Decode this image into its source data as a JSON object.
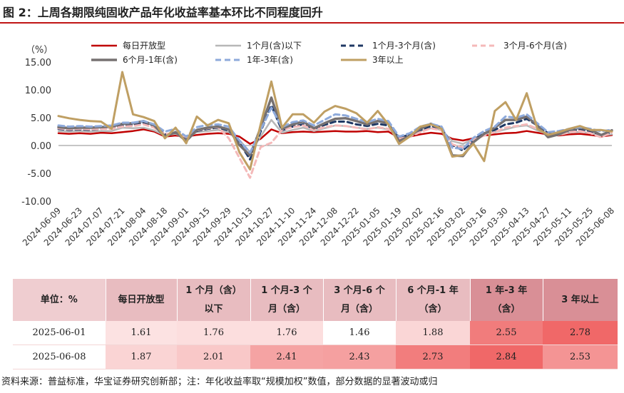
{
  "figure": {
    "title": "图 2：上周各期限纯固收产品年化收益率基本环比不同程度回升"
  },
  "chart_data": {
    "type": "line",
    "ylabel": "（%）",
    "ylim": [
      -10,
      15
    ],
    "yticks": [
      "15.00",
      "10.00",
      "5.00",
      "0.00",
      "-5.00",
      "-10.00"
    ],
    "grid": false,
    "legend_position": "top",
    "x_ticks": [
      "2024-06-09",
      "2024-06-23",
      "2024-07-07",
      "2024-07-21",
      "2024-08-04",
      "2024-08-18",
      "2024-09-01",
      "2024-09-15",
      "2024-09-29",
      "2024-10-13",
      "2024-10-27",
      "2024-11-10",
      "2024-11-24",
      "2024-12-08",
      "2024-12-22",
      "2025-01-05",
      "2025-01-19",
      "2025-02-02",
      "2025-02-16",
      "2025-03-02",
      "2025-03-16",
      "2025-03-30",
      "2025-04-13",
      "2025-04-27",
      "2025-05-11",
      "2025-05-25",
      "2025-06-08"
    ],
    "x": [
      "2024-06-09",
      "2024-06-16",
      "2024-06-23",
      "2024-06-30",
      "2024-07-07",
      "2024-07-14",
      "2024-07-21",
      "2024-07-28",
      "2024-08-04",
      "2024-08-11",
      "2024-08-18",
      "2024-08-25",
      "2024-09-01",
      "2024-09-08",
      "2024-09-15",
      "2024-09-22",
      "2024-09-29",
      "2024-10-06",
      "2024-10-13",
      "2024-10-20",
      "2024-10-27",
      "2024-11-03",
      "2024-11-10",
      "2024-11-17",
      "2024-11-24",
      "2024-12-01",
      "2024-12-08",
      "2024-12-15",
      "2024-12-22",
      "2024-12-29",
      "2025-01-05",
      "2025-01-12",
      "2025-01-19",
      "2025-01-26",
      "2025-02-02",
      "2025-02-09",
      "2025-02-16",
      "2025-02-23",
      "2025-03-02",
      "2025-03-09",
      "2025-03-16",
      "2025-03-23",
      "2025-03-30",
      "2025-04-06",
      "2025-04-13",
      "2025-04-20",
      "2025-04-27",
      "2025-05-04",
      "2025-05-11",
      "2025-05-18",
      "2025-05-25",
      "2025-06-01",
      "2025-06-08"
    ],
    "series": [
      {
        "name": "每日开放型",
        "color": "#c00000",
        "dash": "",
        "width": 2.5,
        "values": [
          2.2,
          2.1,
          2.2,
          2.1,
          2.3,
          2.2,
          2.4,
          2.6,
          2.9,
          2.5,
          1.6,
          1.8,
          1.6,
          1.9,
          2.1,
          2.2,
          2.1,
          1.6,
          0.3,
          1.2,
          2.9,
          2.2,
          2.4,
          2.5,
          2.4,
          2.5,
          2.6,
          2.5,
          2.5,
          2.6,
          2.4,
          2.5,
          1.4,
          1.6,
          2.0,
          2.3,
          2.1,
          1.2,
          0.9,
          1.3,
          1.8,
          2.0,
          2.2,
          2.3,
          2.6,
          2.3,
          2.0,
          1.8,
          2.0,
          2.1,
          1.9,
          1.61,
          1.87
        ]
      },
      {
        "name": "1个月(含)以下",
        "color": "#b7b7b7",
        "dash": "",
        "width": 2.5,
        "values": [
          2.6,
          2.5,
          2.6,
          2.5,
          2.6,
          2.6,
          3.2,
          3.1,
          3.2,
          2.7,
          1.8,
          2.1,
          1.2,
          2.4,
          2.6,
          2.8,
          2.4,
          1.0,
          -1.2,
          1.6,
          4.6,
          2.3,
          2.8,
          3.2,
          2.6,
          3.1,
          3.6,
          3.5,
          3.2,
          3.0,
          3.2,
          2.9,
          1.6,
          1.9,
          2.6,
          3.1,
          2.8,
          0.8,
          0.3,
          1.2,
          2.1,
          2.4,
          2.9,
          3.4,
          3.6,
          2.7,
          2.0,
          1.9,
          2.3,
          2.5,
          2.2,
          1.76,
          2.01
        ]
      },
      {
        "name": "1个月-3个月(含)",
        "color": "#1f3864",
        "dash": "7,5",
        "width": 3,
        "values": [
          3.0,
          2.8,
          2.9,
          2.8,
          3.0,
          3.1,
          3.5,
          3.7,
          4.1,
          3.5,
          2.0,
          2.3,
          1.4,
          2.6,
          3.0,
          3.2,
          2.7,
          0.5,
          -2.5,
          2.5,
          7.2,
          2.7,
          3.4,
          3.8,
          3.0,
          3.7,
          4.3,
          4.3,
          3.8,
          3.5,
          3.9,
          3.6,
          1.4,
          1.9,
          2.8,
          3.5,
          3.1,
          0.1,
          -0.9,
          1.0,
          2.2,
          2.8,
          3.8,
          4.1,
          4.8,
          3.6,
          2.2,
          2.0,
          2.6,
          2.9,
          2.6,
          1.76,
          2.41
        ]
      },
      {
        "name": "3个月-6个月(含)",
        "color": "#f4b9b9",
        "dash": "7,5",
        "width": 3,
        "values": [
          3.1,
          2.9,
          3.0,
          2.9,
          3.0,
          3.0,
          3.4,
          3.5,
          3.8,
          3.2,
          2.0,
          2.4,
          1.5,
          2.7,
          3.1,
          3.3,
          1.3,
          -2.2,
          -5.8,
          -0.3,
          0.5,
          2.8,
          3.3,
          3.6,
          2.8,
          3.3,
          3.6,
          3.5,
          3.2,
          2.9,
          3.3,
          3.0,
          1.2,
          1.6,
          2.4,
          3.1,
          2.7,
          0.2,
          -0.4,
          1.0,
          1.8,
          2.4,
          3.2,
          3.5,
          3.8,
          3.0,
          2.0,
          1.9,
          2.4,
          2.6,
          2.2,
          1.46,
          2.43
        ]
      },
      {
        "name": "6个月-1年(含)",
        "color": "#767171",
        "dash": "",
        "width": 3.5,
        "values": [
          3.3,
          3.1,
          3.2,
          3.2,
          3.3,
          3.4,
          3.9,
          4.0,
          4.4,
          3.6,
          1.6,
          2.4,
          0.8,
          2.8,
          3.2,
          3.4,
          2.9,
          0.1,
          -1.8,
          3.2,
          8.6,
          3.0,
          3.8,
          4.3,
          3.1,
          4.0,
          4.8,
          4.9,
          4.4,
          3.8,
          4.4,
          4.0,
          0.8,
          1.7,
          3.0,
          3.9,
          3.2,
          -1.8,
          -1.9,
          0.6,
          2.1,
          3.2,
          4.6,
          4.6,
          5.2,
          3.6,
          1.5,
          2.0,
          2.8,
          3.2,
          2.8,
          1.88,
          2.73
        ]
      },
      {
        "name": "1年-3年(含)",
        "color": "#8eaadb",
        "dash": "8,5",
        "width": 3,
        "values": [
          3.6,
          3.4,
          3.5,
          3.4,
          3.5,
          3.6,
          4.1,
          4.1,
          4.4,
          3.8,
          2.5,
          3.0,
          1.6,
          3.3,
          3.7,
          3.8,
          3.4,
          0.9,
          -1.3,
          2.8,
          6.8,
          3.3,
          4.2,
          4.5,
          3.6,
          4.6,
          5.6,
          5.4,
          4.8,
          4.2,
          4.8,
          4.4,
          1.6,
          2.2,
          3.4,
          3.9,
          3.4,
          -0.4,
          -0.6,
          1.4,
          2.6,
          3.4,
          5.2,
          5.0,
          5.6,
          4.0,
          2.4,
          2.6,
          3.0,
          3.3,
          3.0,
          2.55,
          2.84
        ]
      },
      {
        "name": "3年以上",
        "color": "#bf9f63",
        "dash": "",
        "width": 3,
        "values": [
          5.3,
          4.9,
          4.6,
          4.4,
          4.3,
          3.0,
          13.2,
          5.6,
          5.1,
          4.4,
          1.3,
          3.2,
          0.4,
          5.2,
          3.6,
          4.6,
          4.0,
          -1.2,
          -4.3,
          3.8,
          11.5,
          3.2,
          5.6,
          5.6,
          4.1,
          6.1,
          7.1,
          6.6,
          5.8,
          4.1,
          6.2,
          3.8,
          0.3,
          1.6,
          3.4,
          3.8,
          3.0,
          -2.0,
          -1.7,
          0.3,
          -2.8,
          6.2,
          7.8,
          4.6,
          9.4,
          3.0,
          1.9,
          2.4,
          3.0,
          3.5,
          2.8,
          2.78,
          2.53
        ]
      }
    ]
  },
  "table": {
    "headers": [
      {
        "l1": "单位：%",
        "l2": ""
      },
      {
        "l1": "每日开放型",
        "l2": ""
      },
      {
        "l1": "1 个月（含）",
        "l2": "以下"
      },
      {
        "l1": "1 个月-3 个",
        "l2": "月（含）"
      },
      {
        "l1": "3 个月-6 个",
        "l2": "月（含）"
      },
      {
        "l1": "6 个月-1 年",
        "l2": "（含）"
      },
      {
        "l1": "1 年-3 年",
        "l2": "（含）"
      },
      {
        "l1": "3 年以上",
        "l2": ""
      }
    ],
    "header_bg": [
      "#efcdd0",
      "#e8bcc0",
      "#e8bcc0",
      "#e8bcc0",
      "#e8bcc0",
      "#e8bcc0",
      "#d98f96",
      "#d98f96"
    ],
    "rows": [
      {
        "date": "2025-06-01",
        "cells": [
          "1.61",
          "1.76",
          "1.76",
          "1.46",
          "1.88",
          "2.55",
          "2.78"
        ],
        "bg": [
          "#fce2e2",
          "#fcdede",
          "#fcdede",
          "#ffffff",
          "#fad6d6",
          "#f17c7c",
          "#f06868"
        ]
      },
      {
        "date": "2025-06-08",
        "cells": [
          "1.87",
          "2.01",
          "2.41",
          "2.43",
          "2.73",
          "2.84",
          "2.53"
        ],
        "bg": [
          "#fad4d4",
          "#f9c8c8",
          "#f5a3a3",
          "#f5a0a0",
          "#f27d7d",
          "#f06868",
          "#f49494"
        ]
      }
    ]
  },
  "footnote": "资料来源：普益标准，华宝证券研究创新部；注：年化收益率取“规模加权”数值，部分数据的显著波动或归"
}
